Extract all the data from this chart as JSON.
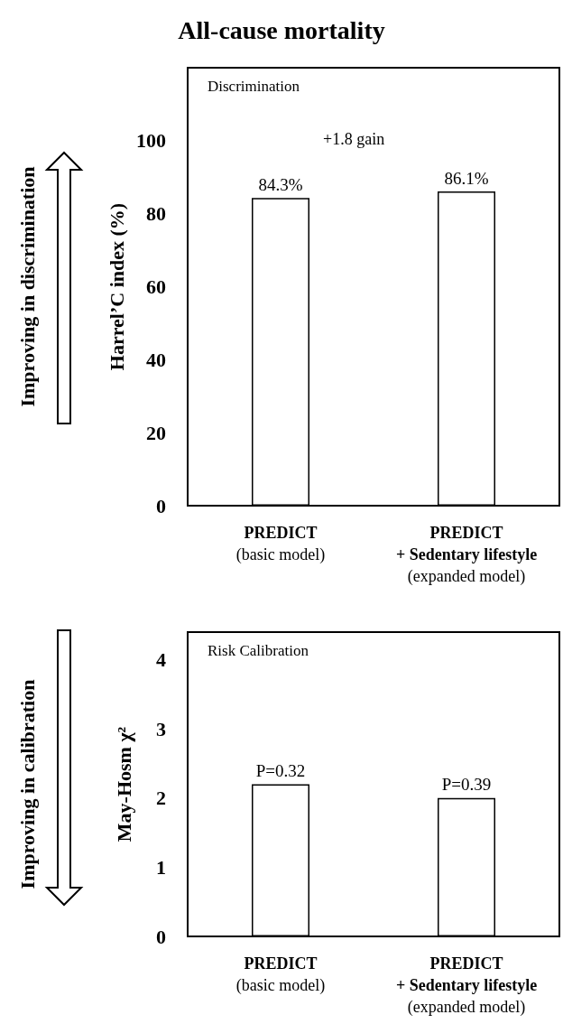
{
  "chart_data": [
    {
      "type": "bar",
      "title": "All-cause mortality",
      "ylabel": "Harrel’C index (%)",
      "annotations": [
        "Discrimination",
        "+1.8 gain",
        "Improving in discrimination"
      ],
      "categories": [
        "PREDICT\n(basic model)",
        "PREDICT\n+ Sedentary lifestyle\n(expanded model)"
      ],
      "values": [
        84.3,
        86.1
      ],
      "value_labels": [
        "84.3%",
        "86.1%"
      ],
      "color": "#ffffff",
      "ylim": [
        0,
        120
      ],
      "yticks": [
        0,
        20,
        40,
        60,
        80,
        100
      ],
      "grid": false
    },
    {
      "type": "bar",
      "ylabel": "May-Hosm χ²",
      "annotations": [
        "Risk Calibration",
        "Improving in calibration",
        {
          "text": "P=0.32",
          "x": "PREDICT\n(basic model)",
          "y": 2.2
        },
        {
          "text": "P=0.39",
          "x": "PREDICT\n+ Sedentary lifestyle\n(expanded model)",
          "y": 2.0
        }
      ],
      "categories": [
        "PREDICT\n(basic model)",
        "PREDICT\n+ Sedentary lifestyle\n(expanded model)"
      ],
      "values": [
        2.2,
        2.0
      ],
      "color": "#ffffff",
      "ylim": [
        0,
        4.4
      ],
      "yticks": [
        0,
        1,
        2,
        3,
        4
      ],
      "grid": false
    }
  ]
}
